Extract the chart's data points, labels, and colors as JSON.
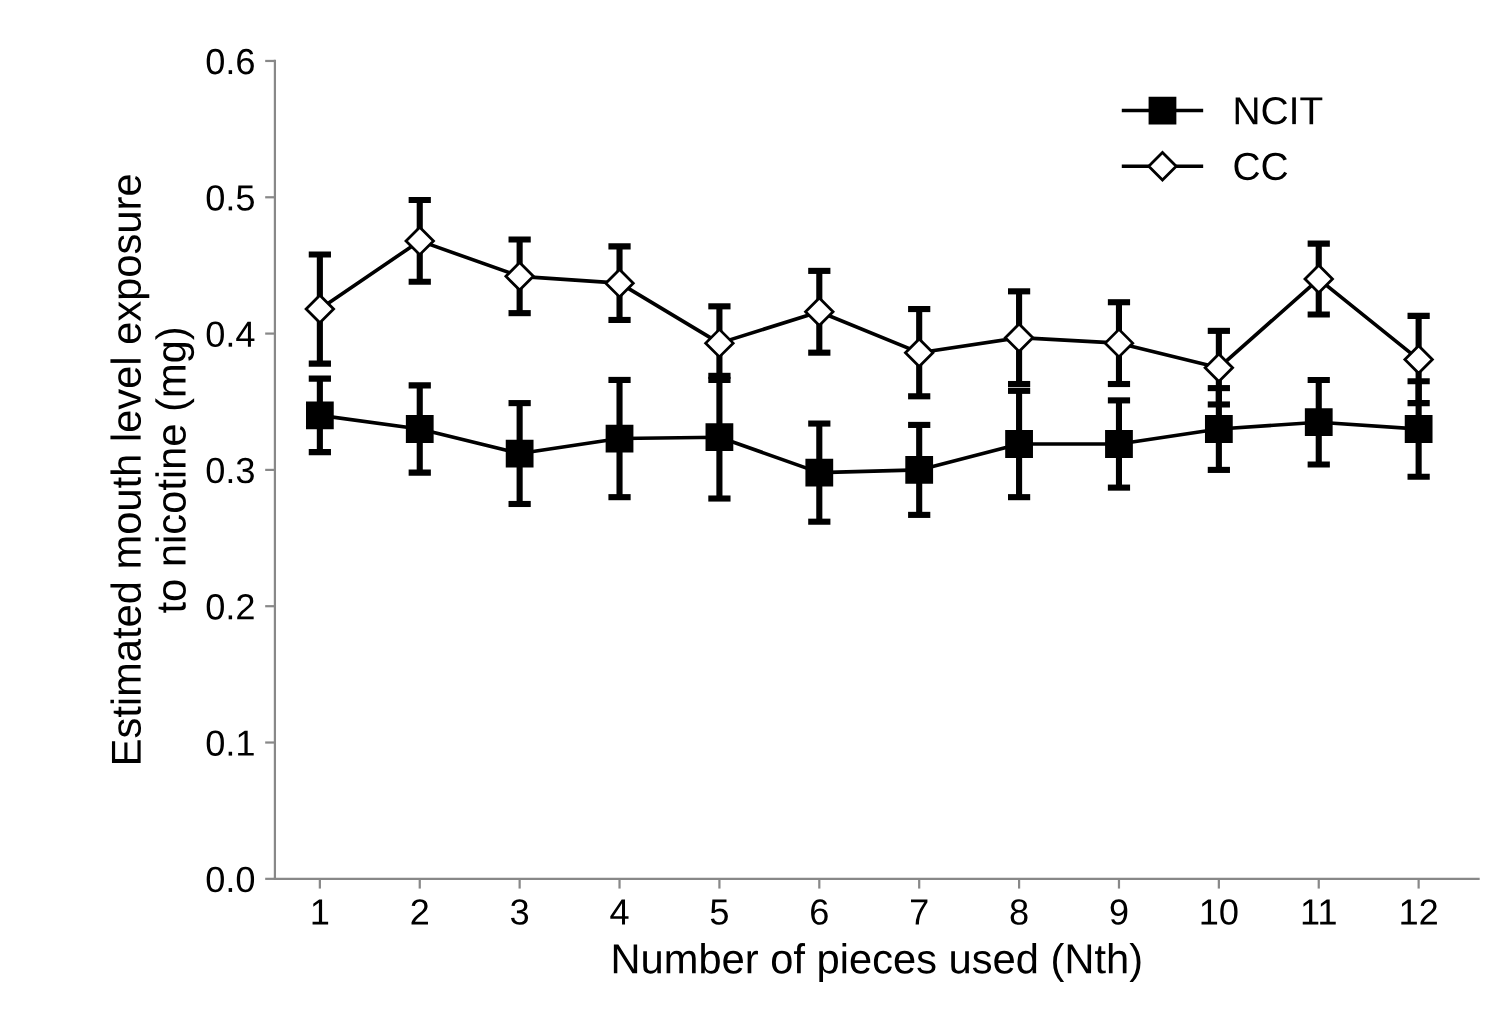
{
  "chart_data": {
    "type": "line",
    "xlabel": "Number of pieces used (Nth)",
    "ylabel": "Estimated mouth level exposure\nto nicotine (mg)",
    "categories": [
      "1",
      "2",
      "3",
      "4",
      "5",
      "6",
      "7",
      "8",
      "9",
      "10",
      "11",
      "12"
    ],
    "series": [
      {
        "name": "NCIT",
        "color": "#000000",
        "marker": "square",
        "values": [
          0.34,
          0.33,
          0.312,
          0.323,
          0.324,
          0.298,
          0.3,
          0.319,
          0.319,
          0.33,
          0.335,
          0.33
        ],
        "errors": [
          0.027,
          0.032,
          0.037,
          0.043,
          0.045,
          0.036,
          0.033,
          0.039,
          0.032,
          0.03,
          0.031,
          0.035
        ]
      },
      {
        "name": "CC",
        "color": "#000000",
        "marker": "diamond",
        "values": [
          0.418,
          0.468,
          0.442,
          0.437,
          0.393,
          0.416,
          0.386,
          0.397,
          0.393,
          0.375,
          0.44,
          0.381
        ],
        "errors": [
          0.04,
          0.03,
          0.027,
          0.027,
          0.027,
          0.03,
          0.032,
          0.034,
          0.03,
          0.027,
          0.026,
          0.032
        ]
      }
    ],
    "ylim": [
      0,
      0.6
    ],
    "yticks": [
      {
        "value": 0,
        "label": "0.0"
      },
      0.1,
      0.2,
      0.3,
      0.4,
      0.5,
      0.6
    ],
    "legend": "top right",
    "grid": false,
    "line_style": "solid"
  }
}
